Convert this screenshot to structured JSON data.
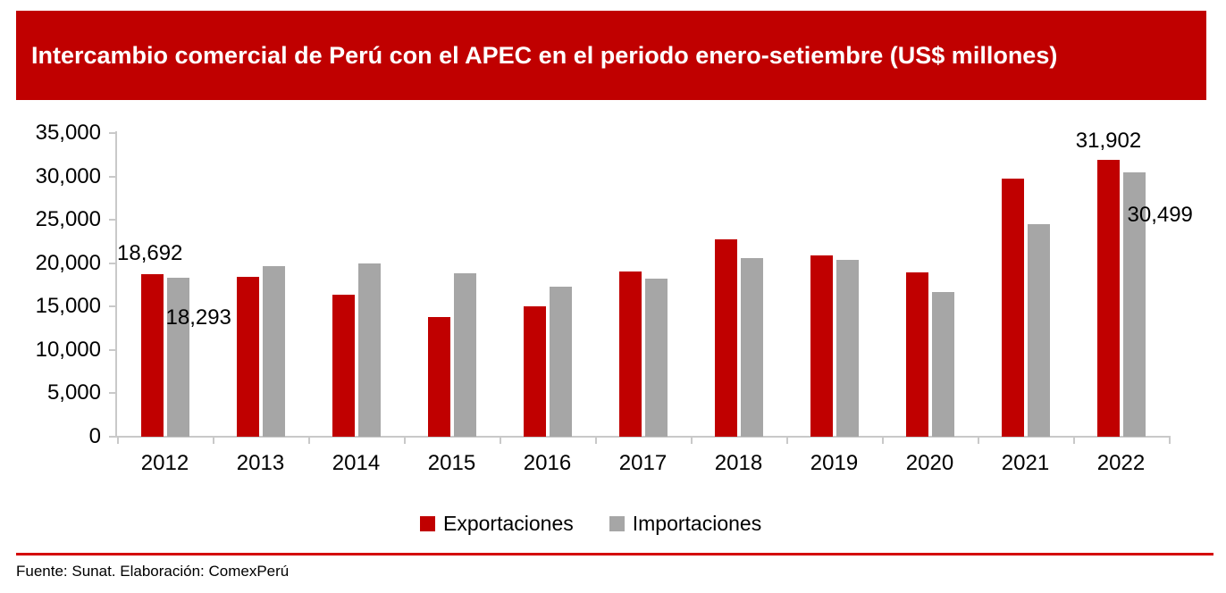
{
  "chart_data": {
    "type": "bar",
    "title": "Intercambio comercial de Perú con el APEC en el periodo enero-setiembre (US$ millones)",
    "xlabel": "",
    "ylabel": "",
    "categories": [
      "2012",
      "2013",
      "2014",
      "2015",
      "2016",
      "2017",
      "2018",
      "2019",
      "2020",
      "2021",
      "2022"
    ],
    "series": [
      {
        "name": "Exportaciones",
        "color": "#c00000",
        "values": [
          18692,
          18400,
          16350,
          13800,
          15000,
          19000,
          22700,
          20900,
          18900,
          29700,
          31902
        ]
      },
      {
        "name": "Importaciones",
        "color": "#a6a6a6",
        "values": [
          18293,
          19650,
          20000,
          18800,
          17300,
          18150,
          20550,
          20350,
          16700,
          24500,
          30499
        ]
      }
    ],
    "ylim": [
      0,
      35000
    ],
    "ytick_step": 5000,
    "ytick_labels": [
      "35,000",
      "30,000",
      "25,000",
      "20,000",
      "15,000",
      "10,000",
      "5,000",
      "0"
    ],
    "grid": false,
    "legend_position": "bottom",
    "data_labels": [
      {
        "series": "Exportaciones",
        "category": "2012",
        "text": "18,692"
      },
      {
        "series": "Importaciones",
        "category": "2012",
        "text": "18,293"
      },
      {
        "series": "Exportaciones",
        "category": "2022",
        "text": "31,902"
      },
      {
        "series": "Importaciones",
        "category": "2022",
        "text": "30,499"
      }
    ]
  },
  "legend": {
    "items": [
      {
        "label": "Exportaciones",
        "color": "#c00000"
      },
      {
        "label": "Importaciones",
        "color": "#a6a6a6"
      }
    ]
  },
  "banner": {
    "background": "#c00000"
  },
  "footer": {
    "source": "Fuente: Sunat. Elaboración: ComexPerú",
    "divider_color": "#d40000"
  }
}
